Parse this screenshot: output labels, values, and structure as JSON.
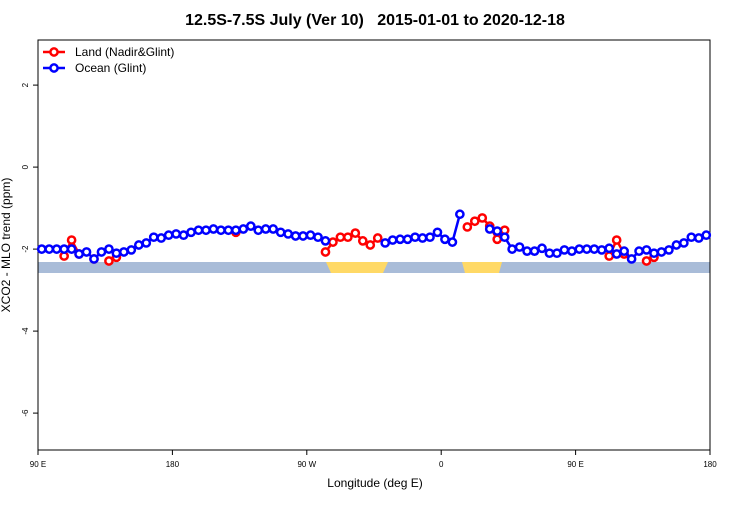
{
  "chart_data": {
    "type": "line",
    "title": "12.5S-7.5S July (Ver 10)   2015-01-01 to 2020-12-18",
    "x_label": "Longitude (deg E)",
    "y_label": "XCO2 - MLO trend (ppm)",
    "x": [
      92.5,
      97.5,
      102.5,
      107.5,
      112.5,
      117.5,
      122.5,
      127.5,
      132.5,
      137.5,
      142.5,
      147.5,
      152.5,
      157.5,
      162.5,
      167.5,
      172.5,
      177.5,
      182.5,
      187.5,
      192.5,
      197.5,
      202.5,
      207.5,
      212.5,
      217.5,
      222.5,
      227.5,
      232.5,
      237.5,
      242.5,
      247.5,
      252.5,
      257.5,
      262.5,
      267.5,
      272.5,
      277.5,
      282.5,
      287.5,
      292.5,
      297.5,
      302.5,
      307.5,
      312.5,
      317.5,
      322.5,
      327.5,
      332.5,
      337.5,
      342.5,
      347.5,
      352.5,
      357.5,
      362.5,
      367.5,
      372.5,
      377.5,
      382.5,
      387.5,
      392.5,
      397.5,
      402.5,
      407.5,
      412.5,
      417.5,
      422.5,
      427.5,
      432.5,
      437.5,
      442.5,
      447.5,
      452.5,
      457.5,
      462.5,
      467.5,
      472.5,
      477.5,
      482.5,
      487.5,
      492.5,
      497.5,
      502.5,
      507.5,
      512.5,
      517.5,
      522.5,
      527.5,
      532.5,
      537.5
    ],
    "series": [
      {
        "name": "Land (Nadir&Glint)",
        "color": "#ff0000",
        "values": [
          null,
          null,
          null,
          -2.17,
          -1.78,
          -2.12,
          null,
          -2.24,
          null,
          -2.29,
          -2.2,
          null,
          null,
          null,
          null,
          null,
          null,
          null,
          null,
          null,
          null,
          null,
          null,
          null,
          null,
          null,
          -1.59,
          null,
          null,
          null,
          null,
          null,
          null,
          null,
          null,
          null,
          null,
          null,
          -2.07,
          -1.83,
          -1.71,
          -1.71,
          -1.61,
          -1.8,
          -1.9,
          -1.73,
          null,
          null,
          null,
          null,
          null,
          null,
          null,
          null,
          null,
          null,
          null,
          -1.46,
          -1.32,
          -1.24,
          -1.44,
          -1.76,
          -1.54,
          null,
          null,
          null,
          null,
          null,
          null,
          null,
          null,
          null,
          null,
          null,
          null,
          null,
          -2.17,
          -1.78,
          -2.12,
          null,
          null,
          -2.29,
          -2.2,
          null,
          null,
          null,
          null,
          null,
          null,
          null
        ]
      },
      {
        "name": "Ocean (Glint)",
        "color": "#0000ff",
        "values": [
          -2.0,
          -2.0,
          -2.0,
          -2.0,
          -2.0,
          -2.12,
          -2.07,
          -2.24,
          -2.07,
          -2.0,
          -2.1,
          -2.07,
          -2.02,
          -1.9,
          -1.85,
          -1.71,
          -1.73,
          -1.66,
          -1.63,
          -1.66,
          -1.59,
          -1.54,
          -1.54,
          -1.51,
          -1.54,
          -1.54,
          -1.54,
          -1.51,
          -1.44,
          -1.54,
          -1.51,
          -1.51,
          -1.59,
          -1.63,
          -1.68,
          -1.68,
          -1.66,
          -1.71,
          -1.8,
          null,
          null,
          null,
          null,
          null,
          null,
          null,
          -1.85,
          -1.78,
          -1.76,
          -1.76,
          -1.71,
          -1.73,
          -1.71,
          -1.59,
          -1.76,
          -1.83,
          -1.15,
          null,
          null,
          null,
          -1.51,
          -1.56,
          -1.71,
          -2.0,
          -1.95,
          -2.05,
          -2.05,
          -1.98,
          -2.1,
          -2.1,
          -2.02,
          -2.05,
          -2.0,
          -2.0,
          -2.0,
          -2.02,
          -1.98,
          -2.12,
          -2.05,
          -2.24,
          -2.05,
          -2.02,
          -2.1,
          -2.07,
          -2.02,
          -1.9,
          -1.85,
          -1.71,
          -1.73,
          -1.66
        ]
      }
    ],
    "xlim": [
      90,
      540
    ],
    "xticks": [
      {
        "value": 90,
        "label": "90 E"
      },
      180,
      {
        "value": 270,
        "label": "90 W"
      },
      {
        "value": 360,
        "label": "0"
      },
      {
        "value": 450,
        "label": "90 E"
      },
      {
        "value": 540,
        "label": "180"
      }
    ],
    "ylim": [
      -6.9,
      3.1
    ],
    "yticks": [
      -6,
      -4,
      -2,
      0,
      2
    ],
    "legend": "top-left"
  }
}
